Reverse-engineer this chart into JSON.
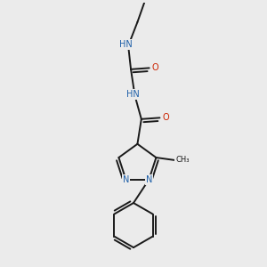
{
  "background_color": "#ebebeb",
  "bond_color": "#1a1a1a",
  "N_color": "#1e5fa8",
  "O_color": "#cc2200",
  "figsize": [
    3.0,
    3.0
  ],
  "dpi": 100,
  "lw": 1.4,
  "xlim": [
    0,
    10
  ],
  "ylim": [
    0,
    10
  ]
}
